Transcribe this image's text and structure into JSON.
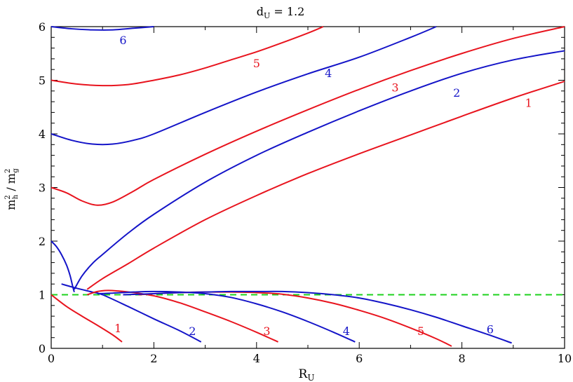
{
  "chart_data": {
    "type": "line",
    "title": {
      "main": "d",
      "sub": "U",
      "rest": " = 1.2"
    },
    "xlabel": {
      "main": "R",
      "sub": "U"
    },
    "ylabel": {
      "base1": "m",
      "sup1": "2",
      "sub1": "h",
      "sep": " / ",
      "base2": "m",
      "sup2": "2",
      "sub2": "g"
    },
    "xlim": [
      0,
      10
    ],
    "ylim": [
      0,
      6
    ],
    "xticks": [
      0,
      2,
      4,
      6,
      8,
      10
    ],
    "yticks": [
      0,
      1,
      2,
      3,
      4,
      5,
      6
    ],
    "grid": false,
    "colors": {
      "red": "#e8141e",
      "blue": "#1414c8",
      "green": "#1ed21e"
    },
    "reference_line": {
      "y": 1.0,
      "style": "dashed",
      "color": "#1ed21e"
    },
    "series": [
      {
        "label": "1",
        "color": "#e8141e",
        "label_pos": [
          9.3,
          4.58
        ],
        "x": [
          0.7,
          1.0,
          1.5,
          2,
          3,
          4,
          5,
          6,
          7,
          8,
          9,
          10
        ],
        "y": [
          1.1,
          1.3,
          1.58,
          1.87,
          2.4,
          2.85,
          3.26,
          3.63,
          3.98,
          4.33,
          4.67,
          4.98
        ]
      },
      {
        "label": "2",
        "color": "#1414c8",
        "label_pos": [
          7.9,
          4.77
        ],
        "x": [
          0.45,
          0.6,
          0.8,
          1.0,
          1.5,
          2,
          3,
          4,
          5,
          6,
          7,
          8,
          9,
          10
        ],
        "y": [
          1.1,
          1.35,
          1.58,
          1.75,
          2.15,
          2.5,
          3.1,
          3.6,
          4.03,
          4.43,
          4.8,
          5.13,
          5.38,
          5.55
        ]
      },
      {
        "label": "3",
        "color": "#e8141e",
        "label_pos": [
          6.7,
          4.87
        ],
        "x": [
          0,
          0.3,
          0.6,
          0.9,
          1.2,
          1.6,
          2,
          3,
          4,
          5,
          6,
          7,
          8,
          9,
          10
        ],
        "y": [
          3.0,
          2.9,
          2.75,
          2.67,
          2.73,
          2.93,
          3.15,
          3.62,
          4.05,
          4.45,
          4.83,
          5.18,
          5.5,
          5.78,
          6.0
        ]
      },
      {
        "label": "4",
        "color": "#1414c8",
        "label_pos": [
          5.4,
          5.14
        ],
        "x": [
          0,
          0.4,
          0.8,
          1.2,
          1.6,
          2,
          3,
          4,
          5,
          6,
          7,
          7.5
        ],
        "y": [
          4.0,
          3.88,
          3.81,
          3.81,
          3.88,
          4.0,
          4.4,
          4.78,
          5.12,
          5.43,
          5.8,
          6.0
        ]
      },
      {
        "label": "5",
        "color": "#e8141e",
        "label_pos": [
          4.0,
          5.32
        ],
        "x": [
          0,
          0.5,
          1.0,
          1.5,
          2,
          2.5,
          3,
          3.5,
          4,
          4.5,
          5,
          5.3
        ],
        "y": [
          5.0,
          4.93,
          4.9,
          4.92,
          5.0,
          5.1,
          5.23,
          5.38,
          5.53,
          5.7,
          5.88,
          6.0
        ]
      },
      {
        "label": "6",
        "color": "#1414c8",
        "label_pos": [
          1.4,
          5.75
        ],
        "x": [
          0,
          0.4,
          0.8,
          1.2,
          1.6,
          2.0
        ],
        "y": [
          6.0,
          5.96,
          5.94,
          5.94,
          5.97,
          6.0
        ]
      },
      {
        "label": "2",
        "color": "#1414c8",
        "label_pos": [
          0.42,
          1.5
        ],
        "hide_label": true,
        "x": [
          0,
          0.1,
          0.2,
          0.3,
          0.37,
          0.42,
          0.45
        ],
        "y": [
          2.0,
          1.9,
          1.75,
          1.55,
          1.35,
          1.15,
          1.05
        ]
      },
      {
        "label": "1",
        "color": "#e8141e",
        "label_pos": [
          1.3,
          0.38
        ],
        "x": [
          0,
          0.3,
          0.6,
          0.9,
          1.2,
          1.38
        ],
        "y": [
          1.0,
          0.78,
          0.6,
          0.43,
          0.25,
          0.12
        ]
      },
      {
        "label": "2",
        "color": "#1414c8",
        "label_pos": [
          2.75,
          0.33
        ],
        "x": [
          0.2,
          0.5,
          0.8,
          1.0,
          1.5,
          2.0,
          2.5,
          2.92
        ],
        "y": [
          1.2,
          1.12,
          1.05,
          1.0,
          0.78,
          0.55,
          0.33,
          0.12
        ]
      },
      {
        "label": "3",
        "color": "#e8141e",
        "label_pos": [
          4.2,
          0.33
        ],
        "x": [
          0.7,
          0.9,
          1.1,
          1.3,
          1.6,
          2.0,
          2.5,
          3.0,
          3.5,
          4.0,
          4.42
        ],
        "y": [
          1.0,
          1.06,
          1.08,
          1.07,
          1.04,
          0.98,
          0.85,
          0.68,
          0.5,
          0.3,
          0.12
        ]
      },
      {
        "label": "4",
        "color": "#1414c8",
        "label_pos": [
          5.75,
          0.33
        ],
        "x": [
          0.9,
          1.2,
          1.6,
          2.0,
          2.5,
          3.0,
          3.5,
          4.0,
          4.5,
          5.0,
          5.5,
          5.92
        ],
        "y": [
          1.02,
          1.03,
          1.05,
          1.06,
          1.05,
          1.02,
          0.95,
          0.83,
          0.68,
          0.5,
          0.3,
          0.12
        ]
      },
      {
        "label": "5",
        "color": "#e8141e",
        "label_pos": [
          7.2,
          0.33
        ],
        "x": [
          1.7,
          2.0,
          2.5,
          3.0,
          3.5,
          4.0,
          4.5,
          5.0,
          5.5,
          6.0,
          6.5,
          7.0,
          7.5,
          7.8
        ],
        "y": [
          1.0,
          1.02,
          1.04,
          1.05,
          1.05,
          1.04,
          1.01,
          0.94,
          0.84,
          0.71,
          0.56,
          0.38,
          0.18,
          0.04
        ]
      },
      {
        "label": "6",
        "color": "#1414c8",
        "label_pos": [
          8.55,
          0.36
        ],
        "x": [
          1.4,
          2.0,
          2.5,
          3.0,
          3.5,
          4.0,
          4.5,
          5.0,
          5.5,
          6.0,
          6.5,
          7.0,
          7.5,
          8.0,
          8.5,
          8.97
        ],
        "y": [
          1.0,
          1.02,
          1.04,
          1.05,
          1.06,
          1.06,
          1.06,
          1.04,
          1.0,
          0.94,
          0.84,
          0.72,
          0.58,
          0.42,
          0.26,
          0.1
        ]
      }
    ]
  }
}
